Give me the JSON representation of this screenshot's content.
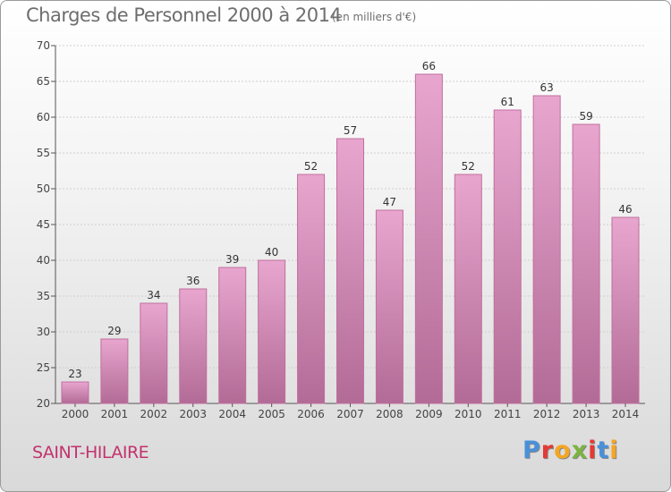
{
  "header": {
    "title": "Charges de Personnel 2000 à 2014",
    "subtitle": "(en milliers d'€)"
  },
  "footer": {
    "commune": "SAINT-HILAIRE",
    "brand": [
      "P",
      "r",
      "o",
      "x",
      "i",
      "t",
      "i"
    ],
    "brand_colors": [
      "#4a90d9",
      "#e53935",
      "#f5a623",
      "#7cb342",
      "#e53935",
      "#4a90d9",
      "#f5a623"
    ]
  },
  "chart_data": {
    "type": "bar",
    "title": "Charges de Personnel 2000 à 2014",
    "subtitle": "(en milliers d'€)",
    "categories": [
      "2000",
      "2001",
      "2002",
      "2003",
      "2004",
      "2005",
      "2006",
      "2007",
      "2008",
      "2009",
      "2010",
      "2011",
      "2012",
      "2013",
      "2014"
    ],
    "values": [
      23,
      29,
      34,
      36,
      39,
      40,
      52,
      57,
      47,
      66,
      52,
      61,
      63,
      59,
      46
    ],
    "ylim": [
      20,
      70
    ],
    "yticks": [
      20,
      25,
      30,
      35,
      40,
      45,
      50,
      55,
      60,
      65,
      70
    ],
    "grid": true,
    "bar_color": "#d88fb8",
    "bar_edge_color": "#c16f9c"
  }
}
